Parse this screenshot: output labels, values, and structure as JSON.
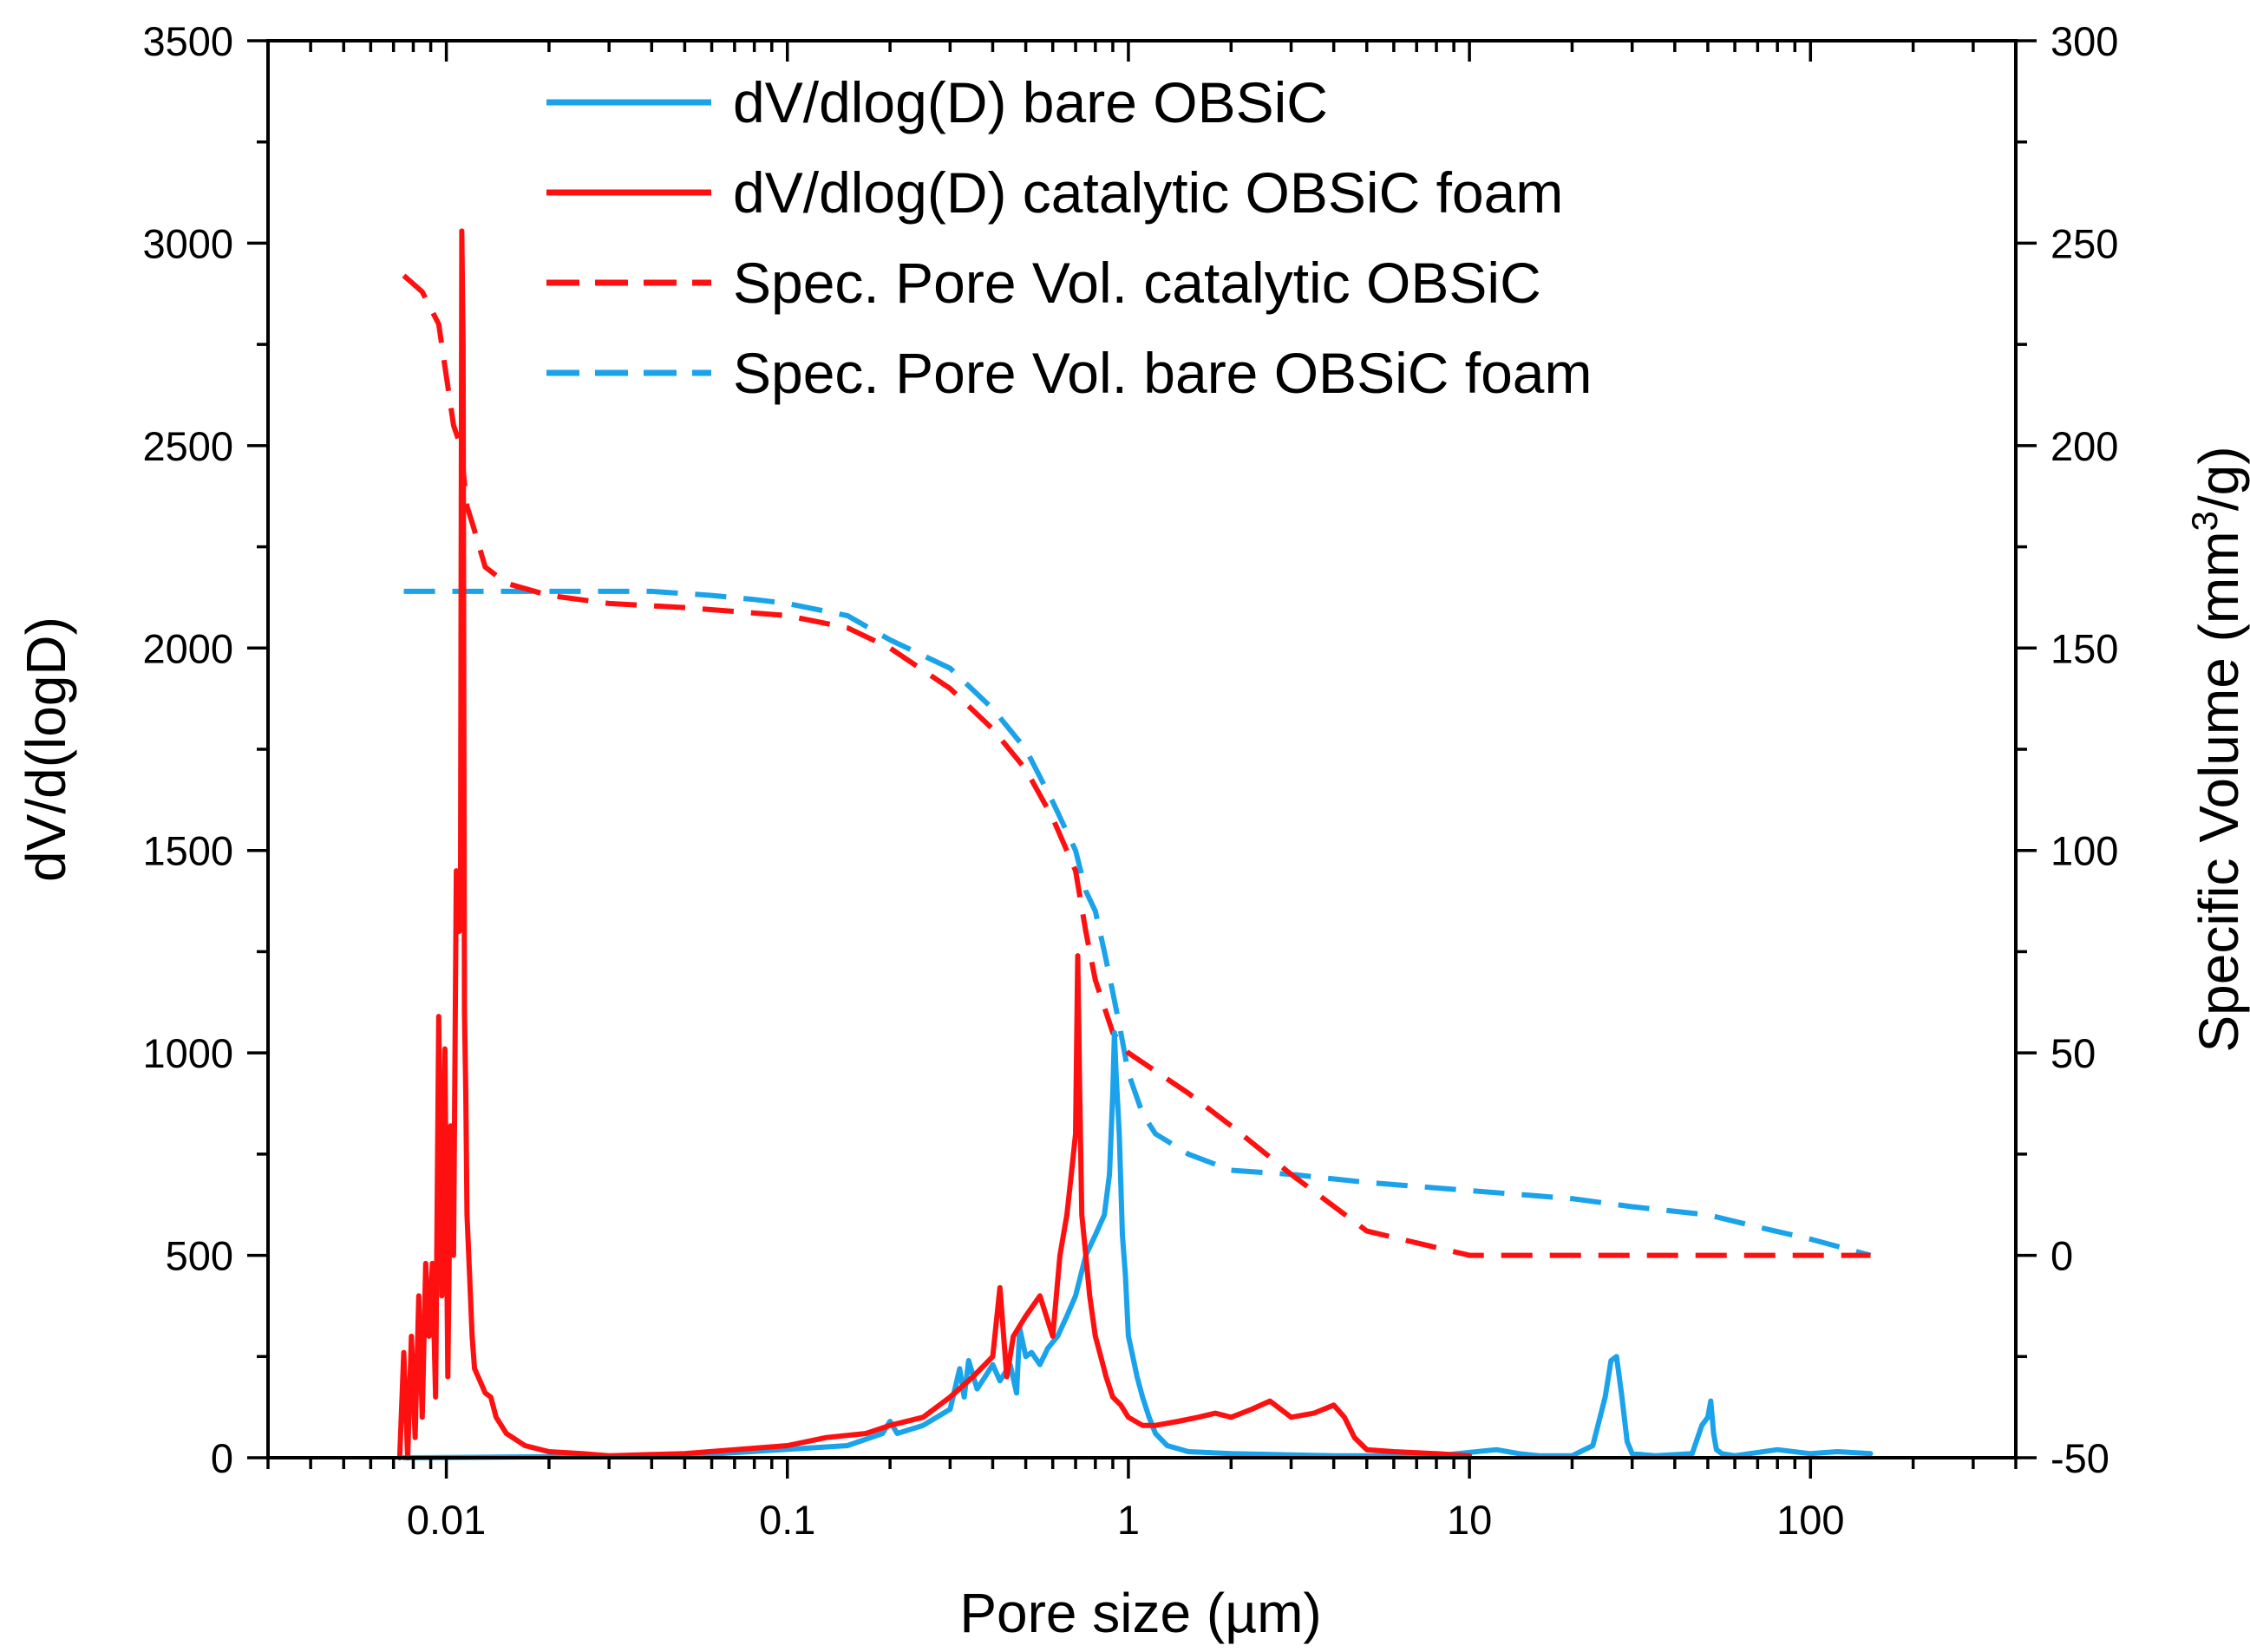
{
  "chart_data": {
    "type": "line",
    "xlabel": "Pore size (µm)",
    "ylabel_left": "dV/d(logD)",
    "ylabel_right_prefix": "Specific Volume (mm",
    "ylabel_right_sup": "3",
    "ylabel_right_suffix": "/g)",
    "x_scale": "log",
    "xlim": [
      0.003,
      400
    ],
    "ylim_left": [
      0,
      3500
    ],
    "ylim_right": [
      -50,
      300
    ],
    "x_ticks": [
      0.01,
      0.1,
      1,
      10,
      100
    ],
    "x_tick_labels": [
      "0.01",
      "0.1",
      "1",
      "10",
      "100"
    ],
    "y_left_ticks": [
      0,
      500,
      1000,
      1500,
      2000,
      2500,
      3000,
      3500
    ],
    "y_left_tick_labels": [
      "0",
      "500",
      "1000",
      "1500",
      "2000",
      "2500",
      "3000",
      "3500"
    ],
    "y_right_ticks": [
      -50,
      0,
      50,
      100,
      150,
      200,
      250,
      300
    ],
    "y_right_tick_labels": [
      "-50",
      "0",
      "50",
      "100",
      "150",
      "200",
      "250",
      "300"
    ],
    "legend_position": "top-center",
    "series": [
      {
        "name": "dV/dlog(D) bare OBSiC",
        "axis": "left",
        "color": "#1aa3ea",
        "style": "solid",
        "x": [
          0.0075,
          0.05,
          0.15,
          0.19,
          0.2,
          0.21,
          0.25,
          0.3,
          0.32,
          0.33,
          0.34,
          0.36,
          0.38,
          0.4,
          0.42,
          0.45,
          0.47,
          0.48,
          0.5,
          0.52,
          0.55,
          0.58,
          0.62,
          0.66,
          0.7,
          0.75,
          0.8,
          0.85,
          0.88,
          0.9,
          0.91,
          0.92,
          0.94,
          0.96,
          0.98,
          1.0,
          1.03,
          1.06,
          1.1,
          1.15,
          1.2,
          1.3,
          1.5,
          2.0,
          4.0,
          8.0,
          12.0,
          14.0,
          16.0,
          20.0,
          23.0,
          25.0,
          26.0,
          27.0,
          28.0,
          29.0,
          30.0,
          35.0,
          45.0,
          48.0,
          50.0,
          51.0,
          52.0,
          53.0,
          55.0,
          60.0,
          80.0,
          100.0,
          120.0,
          150.0
        ],
        "values": [
          0,
          5,
          30,
          60,
          90,
          60,
          80,
          120,
          220,
          150,
          240,
          170,
          200,
          230,
          190,
          230,
          160,
          320,
          250,
          260,
          230,
          270,
          300,
          350,
          400,
          500,
          550,
          600,
          700,
          900,
          1050,
          950,
          800,
          550,
          450,
          300,
          250,
          200,
          150,
          100,
          60,
          30,
          15,
          10,
          5,
          5,
          20,
          10,
          5,
          5,
          30,
          150,
          240,
          250,
          150,
          40,
          10,
          5,
          10,
          80,
          100,
          140,
          60,
          20,
          10,
          5,
          20,
          10,
          15,
          10
        ]
      },
      {
        "name": "dV/dlog(D) catalytic OBSiC foam",
        "axis": "left",
        "color": "#ff1010",
        "style": "solid",
        "x": [
          0.0073,
          0.0075,
          0.0077,
          0.0079,
          0.0081,
          0.0083,
          0.0085,
          0.0087,
          0.0089,
          0.0091,
          0.0093,
          0.0095,
          0.0097,
          0.0099,
          0.0101,
          0.0103,
          0.0105,
          0.0107,
          0.0109,
          0.011,
          0.0111,
          0.0112,
          0.0113,
          0.0114,
          0.0115,
          0.0117,
          0.0119,
          0.0121,
          0.0124,
          0.0127,
          0.013,
          0.0135,
          0.014,
          0.015,
          0.017,
          0.02,
          0.025,
          0.03,
          0.04,
          0.05,
          0.07,
          0.1,
          0.13,
          0.17,
          0.2,
          0.25,
          0.3,
          0.35,
          0.4,
          0.42,
          0.44,
          0.46,
          0.5,
          0.55,
          0.6,
          0.63,
          0.66,
          0.68,
          0.7,
          0.71,
          0.72,
          0.73,
          0.75,
          0.77,
          0.8,
          0.83,
          0.86,
          0.9,
          0.95,
          1.0,
          1.1,
          1.2,
          1.4,
          1.6,
          1.8,
          2.0,
          2.3,
          2.6,
          3.0,
          3.5,
          4.0,
          4.3,
          4.6,
          5.0,
          6.0,
          8.0,
          10.0
        ],
        "values": [
          0,
          260,
          0,
          300,
          50,
          400,
          100,
          480,
          300,
          480,
          150,
          1090,
          400,
          1010,
          200,
          820,
          500,
          1450,
          1300,
          1370,
          3030,
          2750,
          1100,
          900,
          600,
          450,
          300,
          220,
          200,
          180,
          160,
          150,
          100,
          60,
          30,
          15,
          10,
          5,
          8,
          10,
          20,
          30,
          50,
          60,
          80,
          100,
          150,
          200,
          250,
          420,
          200,
          300,
          350,
          400,
          300,
          500,
          600,
          700,
          800,
          1240,
          900,
          600,
          500,
          400,
          300,
          250,
          200,
          150,
          130,
          100,
          80,
          80,
          90,
          100,
          110,
          100,
          120,
          140,
          100,
          110,
          130,
          100,
          50,
          20,
          15,
          10,
          5
        ]
      },
      {
        "name": "Spec. Pore Vol. catalytic OBSiC",
        "axis": "right",
        "color": "#ff1010",
        "style": "dashed",
        "x": [
          0.0075,
          0.0085,
          0.0095,
          0.0105,
          0.011,
          0.0115,
          0.012,
          0.013,
          0.015,
          0.02,
          0.03,
          0.05,
          0.1,
          0.15,
          0.2,
          0.3,
          0.4,
          0.5,
          0.6,
          0.7,
          0.75,
          0.8,
          0.9,
          1.0,
          1.5,
          2.0,
          3.0,
          5.0,
          10.0,
          20.0,
          50.0,
          100.0,
          150.0
        ],
        "values": [
          242,
          238,
          230,
          205,
          200,
          185,
          180,
          170,
          166,
          163,
          161,
          160,
          158,
          155,
          150,
          140,
          130,
          120,
          108,
          95,
          80,
          68,
          55,
          50,
          40,
          32,
          20,
          6,
          0,
          0,
          0,
          0,
          0
        ]
      },
      {
        "name": "Spec. Pore Vol. bare OBSiC foam",
        "axis": "right",
        "color": "#1aa3ea",
        "style": "dashed",
        "x": [
          0.0075,
          0.01,
          0.02,
          0.04,
          0.06,
          0.08,
          0.1,
          0.15,
          0.2,
          0.3,
          0.4,
          0.5,
          0.6,
          0.7,
          0.75,
          0.8,
          0.85,
          0.9,
          0.95,
          1.0,
          1.1,
          1.2,
          1.5,
          2.0,
          3.0,
          5.0,
          10.0,
          20.0,
          30.0,
          50.0,
          70.0,
          100.0,
          150.0
        ],
        "values": [
          164,
          164,
          164,
          164,
          163,
          162,
          161,
          158,
          152,
          145,
          135,
          125,
          112,
          100,
          90,
          85,
          75,
          65,
          55,
          45,
          35,
          30,
          25,
          21,
          20,
          18,
          16,
          14,
          12,
          10,
          7,
          4,
          0
        ]
      }
    ]
  }
}
